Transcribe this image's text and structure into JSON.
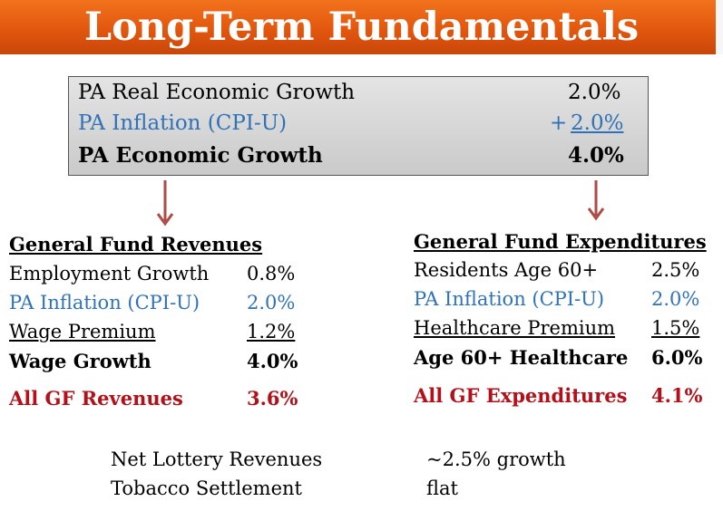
{
  "title": "Long-Term Fundamentals",
  "summary": {
    "real_growth": {
      "label": "PA Real Economic Growth",
      "value": "2.0%"
    },
    "inflation": {
      "label": "PA Inflation (CPI-U)",
      "prefix": "+",
      "value": "2.0%"
    },
    "total": {
      "label": "PA Economic Growth",
      "value": "4.0%"
    }
  },
  "revenues": {
    "heading": "General Fund Revenues",
    "employment": {
      "label": "Employment Growth",
      "value": "0.8%"
    },
    "inflation": {
      "label": "PA Inflation (CPI-U)",
      "value": "2.0%"
    },
    "wage_premium": {
      "label": "Wage Premium",
      "value": "1.2%"
    },
    "wage_growth": {
      "label": "Wage Growth",
      "value": "4.0%"
    },
    "all": {
      "label": "All GF Revenues",
      "value": "3.6%"
    }
  },
  "expenditures": {
    "heading": "General Fund Expenditures",
    "residents": {
      "label": "Residents Age 60+",
      "value": "2.5%"
    },
    "inflation": {
      "label": "PA Inflation (CPI-U)",
      "value": "2.0%"
    },
    "healthcare_premium": {
      "label": "Healthcare Premium",
      "value": "1.5%"
    },
    "age60_healthcare": {
      "label": "Age 60+ Healthcare",
      "value": "6.0%"
    },
    "all": {
      "label": "All GF Expenditures",
      "value": "4.1%"
    }
  },
  "other": {
    "lottery": {
      "label": "Net Lottery Revenues",
      "value": "~2.5% growth"
    },
    "tobacco": {
      "label": "Tobacco Settlement",
      "value": "flat"
    }
  },
  "colors": {
    "header": "#e2570e",
    "blue": "#2f72b8",
    "red": "#b3101a",
    "arrow": "#b04a44"
  }
}
